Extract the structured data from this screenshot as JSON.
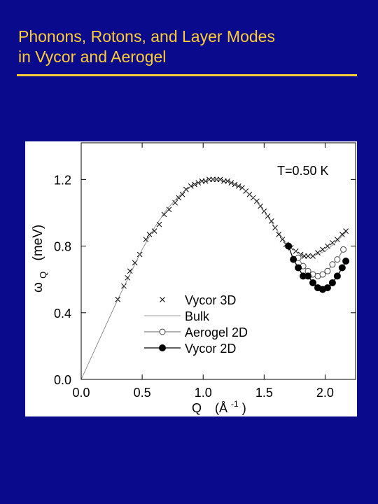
{
  "slide": {
    "title": "Phonons, Rotons, and Layer Modes\nin Vycor and Aerogel"
  },
  "colors": {
    "background": "#0a0a8c",
    "title": "#ffcc33",
    "panel": "#ffffff"
  },
  "chart_data": {
    "type": "scatter",
    "title": "",
    "annotation": "T=0.50 K",
    "xlabel": "Q",
    "xlabel_unit_base": "(Å",
    "xlabel_unit_exp": "-1",
    "xlabel_unit_close": ")",
    "ylabel_symbol": "ω",
    "ylabel_sub": "Q",
    "ylabel_unit": "(meV)",
    "xlim": [
      0.0,
      2.25
    ],
    "ylim": [
      0.0,
      1.42
    ],
    "xticks": [
      {
        "v": 0.0,
        "label": "0.0"
      },
      {
        "v": 0.5,
        "label": "0.5"
      },
      {
        "v": 1.0,
        "label": "1.0"
      },
      {
        "v": 1.5,
        "label": "1.5"
      },
      {
        "v": 2.0,
        "label": "2.0"
      }
    ],
    "yticks": [
      {
        "v": 0.0,
        "label": "0.0"
      },
      {
        "v": 0.4,
        "label": "0.4"
      },
      {
        "v": 0.8,
        "label": "0.8"
      },
      {
        "v": 1.2,
        "label": "1.2"
      }
    ],
    "legend_position": "bottom-left",
    "series": [
      {
        "name": "Vycor 3D",
        "marker": "x",
        "line": false,
        "points": [
          [
            0.3,
            0.48
          ],
          [
            0.35,
            0.56
          ],
          [
            0.38,
            0.61
          ],
          [
            0.4,
            0.65
          ],
          [
            0.44,
            0.7
          ],
          [
            0.48,
            0.75
          ],
          [
            0.53,
            0.84
          ],
          [
            0.56,
            0.87
          ],
          [
            0.6,
            0.89
          ],
          [
            0.64,
            0.93
          ],
          [
            0.68,
            0.99
          ],
          [
            0.72,
            1.02
          ],
          [
            0.77,
            1.06
          ],
          [
            0.8,
            1.09
          ],
          [
            0.83,
            1.11
          ],
          [
            0.86,
            1.14
          ],
          [
            0.9,
            1.16
          ],
          [
            0.93,
            1.17
          ],
          [
            0.96,
            1.18
          ],
          [
            0.99,
            1.19
          ],
          [
            1.02,
            1.19
          ],
          [
            1.05,
            1.2
          ],
          [
            1.08,
            1.2
          ],
          [
            1.11,
            1.2
          ],
          [
            1.14,
            1.2
          ],
          [
            1.17,
            1.19
          ],
          [
            1.2,
            1.19
          ],
          [
            1.23,
            1.18
          ],
          [
            1.26,
            1.17
          ],
          [
            1.29,
            1.16
          ],
          [
            1.32,
            1.15
          ],
          [
            1.35,
            1.13
          ],
          [
            1.38,
            1.11
          ],
          [
            1.41,
            1.09
          ],
          [
            1.44,
            1.07
          ],
          [
            1.47,
            1.04
          ],
          [
            1.5,
            1.01
          ],
          [
            1.53,
            0.98
          ],
          [
            1.56,
            0.95
          ],
          [
            1.59,
            0.91
          ],
          [
            1.62,
            0.87
          ],
          [
            1.65,
            0.84
          ],
          [
            1.68,
            0.81
          ],
          [
            1.72,
            0.79
          ],
          [
            1.76,
            0.77
          ],
          [
            1.8,
            0.75
          ],
          [
            1.83,
            0.74
          ],
          [
            1.86,
            0.74
          ],
          [
            1.9,
            0.74
          ],
          [
            1.94,
            0.76
          ],
          [
            1.98,
            0.78
          ],
          [
            2.02,
            0.8
          ],
          [
            2.06,
            0.82
          ],
          [
            2.1,
            0.84
          ],
          [
            2.14,
            0.87
          ],
          [
            2.17,
            0.89
          ]
        ]
      },
      {
        "name": "Bulk",
        "marker": "none",
        "line": true,
        "points": [
          [
            0.0,
            0.0
          ],
          [
            0.1,
            0.16
          ],
          [
            0.2,
            0.32
          ],
          [
            0.3,
            0.48
          ],
          [
            0.4,
            0.63
          ],
          [
            0.5,
            0.78
          ],
          [
            0.6,
            0.91
          ],
          [
            0.7,
            1.02
          ],
          [
            0.8,
            1.1
          ],
          [
            0.9,
            1.16
          ],
          [
            1.0,
            1.19
          ],
          [
            1.1,
            1.2
          ],
          [
            1.2,
            1.19
          ],
          [
            1.3,
            1.16
          ],
          [
            1.4,
            1.1
          ],
          [
            1.5,
            1.01
          ],
          [
            1.6,
            0.9
          ],
          [
            1.7,
            0.8
          ],
          [
            1.8,
            0.75
          ],
          [
            1.9,
            0.74
          ],
          [
            2.0,
            0.77
          ],
          [
            2.1,
            0.83
          ],
          [
            2.18,
            0.89
          ]
        ]
      },
      {
        "name": "Aerogel 2D",
        "marker": "open-circle",
        "line": true,
        "points": [
          [
            1.78,
            0.73
          ],
          [
            1.82,
            0.68
          ],
          [
            1.86,
            0.65
          ],
          [
            1.9,
            0.63
          ],
          [
            1.94,
            0.62
          ],
          [
            1.98,
            0.63
          ],
          [
            2.02,
            0.65
          ],
          [
            2.06,
            0.69
          ],
          [
            2.1,
            0.72
          ],
          [
            2.15,
            0.78
          ]
        ]
      },
      {
        "name": "Vycor 2D",
        "marker": "filled-circle",
        "line": true,
        "points": [
          [
            1.7,
            0.8
          ],
          [
            1.74,
            0.72
          ],
          [
            1.78,
            0.67
          ],
          [
            1.82,
            0.62
          ],
          [
            1.86,
            0.62
          ],
          [
            1.9,
            0.58
          ],
          [
            1.94,
            0.55
          ],
          [
            1.98,
            0.54
          ],
          [
            2.02,
            0.55
          ],
          [
            2.06,
            0.58
          ],
          [
            2.1,
            0.62
          ],
          [
            2.14,
            0.67
          ],
          [
            2.17,
            0.71
          ]
        ]
      }
    ]
  }
}
